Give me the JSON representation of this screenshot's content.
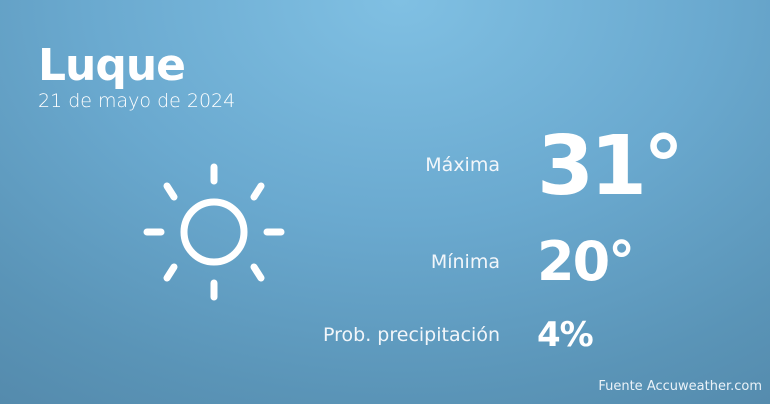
{
  "city": "Luque",
  "date": "21 de mayo de 2024",
  "weather_icon": "sun-icon",
  "max": {
    "label": "Máxima",
    "value": "31°"
  },
  "min": {
    "label": "Mínima",
    "value": "20°"
  },
  "precip": {
    "label": "Prob. precipitación",
    "value": "4%"
  },
  "source": "Fuente Accuweather.com"
}
